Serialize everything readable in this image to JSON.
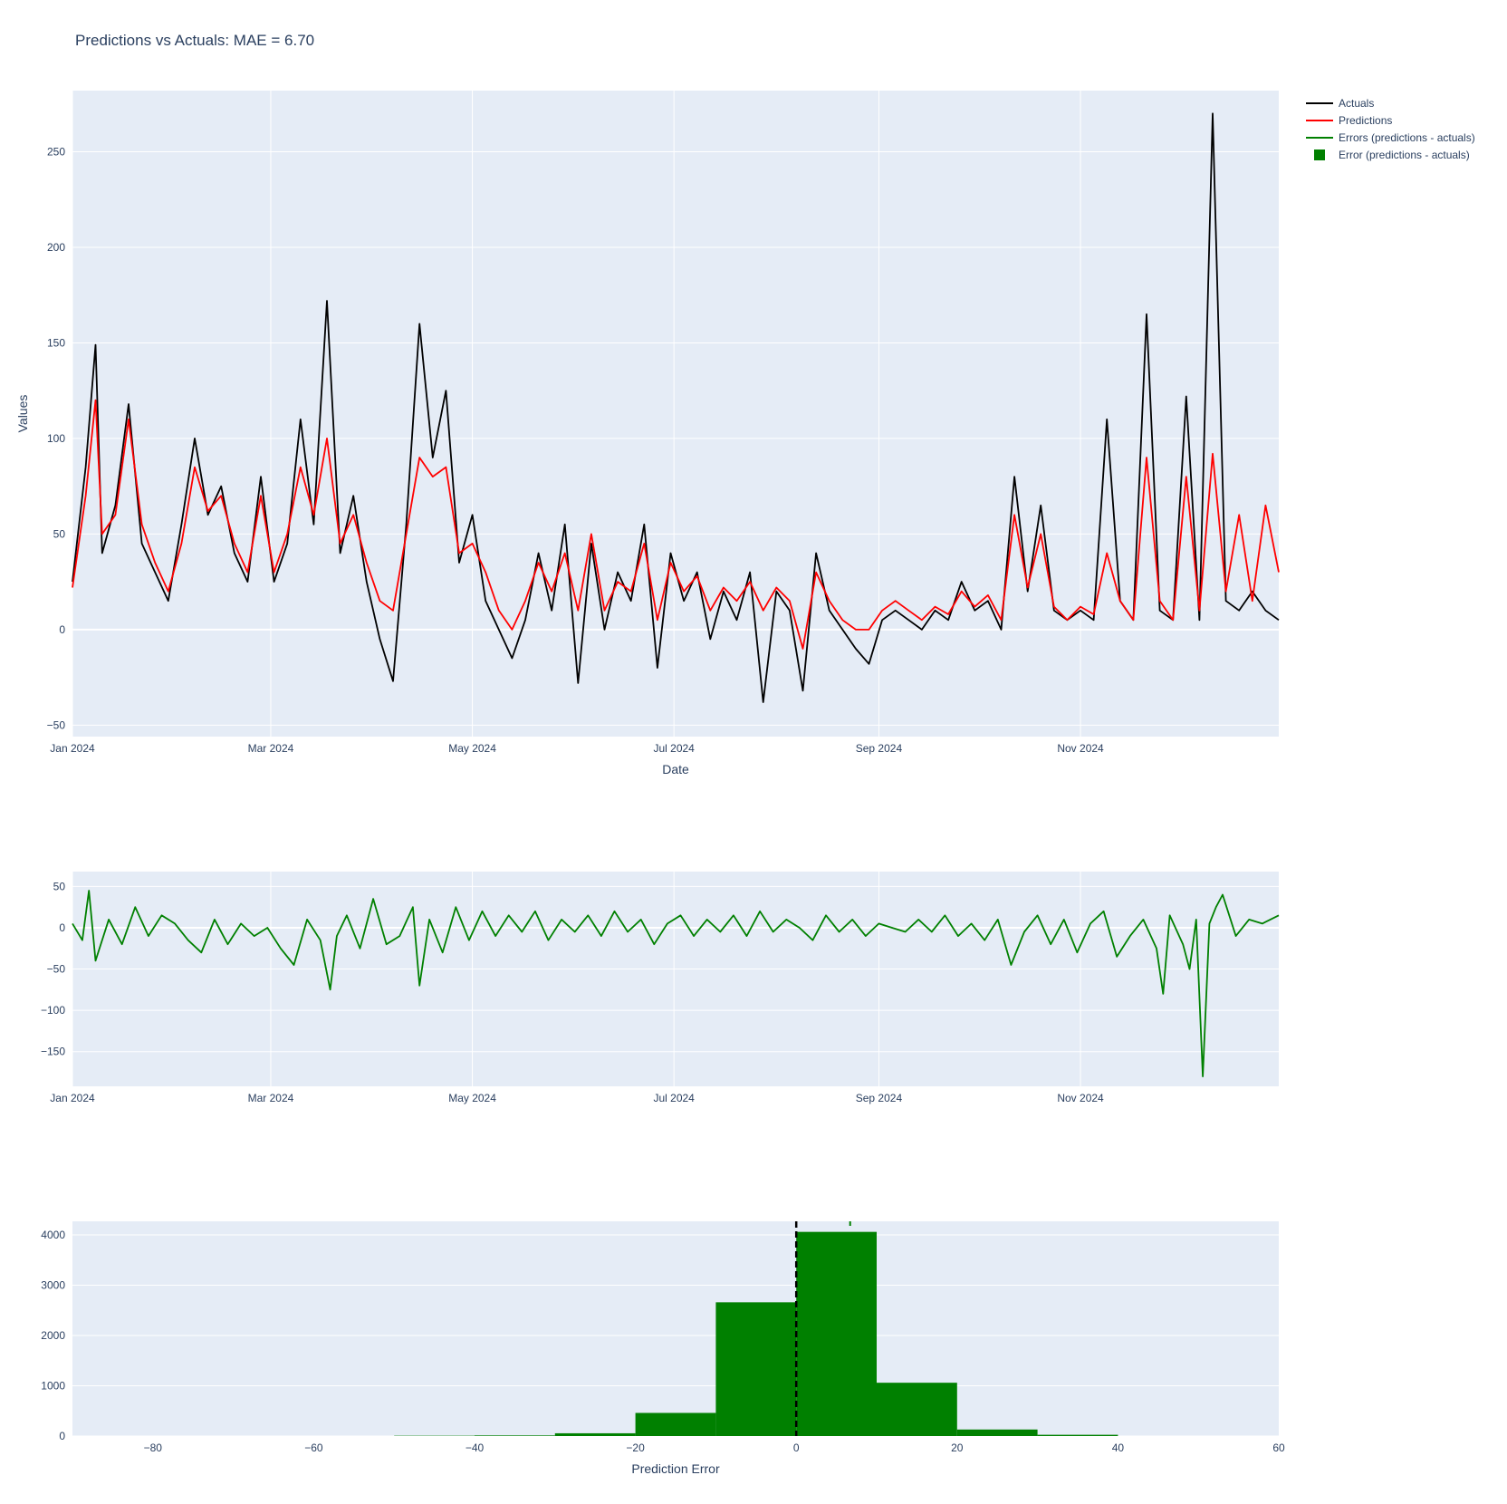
{
  "title": "Predictions vs Actuals: MAE = 6.70",
  "colors": {
    "actuals": "#000000",
    "predictions": "#ff0000",
    "errors": "#008000",
    "plot_bg": "#e5ecf6",
    "grid": "#ffffff"
  },
  "legend": {
    "placement": "top-right-outside",
    "items": [
      {
        "label": "Actuals",
        "color": "#000000",
        "symbol": "line"
      },
      {
        "label": "Predictions",
        "color": "#ff0000",
        "symbol": "line"
      },
      {
        "label": "Errors (predictions - actuals)",
        "color": "#008000",
        "symbol": "line"
      },
      {
        "label": "Error (predictions - actuals)",
        "color": "#008000",
        "symbol": "square"
      }
    ]
  },
  "chart_data": [
    {
      "id": "timeseries",
      "type": "line",
      "xlabel": "Date",
      "ylabel": "Values",
      "xlim": [
        "2024-01-01",
        "2024-12-31"
      ],
      "ylim": [
        -56,
        282
      ],
      "x_ticks": [
        "Jan 2024",
        "Mar 2024",
        "May 2024",
        "Jul 2024",
        "Sep 2024",
        "Nov 2024"
      ],
      "x_tick_dates": [
        "2024-01-01",
        "2024-03-01",
        "2024-05-01",
        "2024-07-01",
        "2024-09-01",
        "2024-11-01"
      ],
      "y_ticks": [
        -50,
        0,
        50,
        100,
        150,
        200,
        250
      ],
      "grid": true,
      "series": [
        {
          "name": "Actuals",
          "color": "#000000",
          "x": [
            "2024-01-01",
            "2024-01-05",
            "2024-01-08",
            "2024-01-10",
            "2024-01-14",
            "2024-01-18",
            "2024-01-22",
            "2024-01-26",
            "2024-01-30",
            "2024-02-03",
            "2024-02-07",
            "2024-02-11",
            "2024-02-15",
            "2024-02-19",
            "2024-02-23",
            "2024-02-27",
            "2024-03-02",
            "2024-03-06",
            "2024-03-10",
            "2024-03-14",
            "2024-03-18",
            "2024-03-22",
            "2024-03-26",
            "2024-03-30",
            "2024-04-03",
            "2024-04-07",
            "2024-04-11",
            "2024-04-15",
            "2024-04-19",
            "2024-04-23",
            "2024-04-27",
            "2024-05-01",
            "2024-05-05",
            "2024-05-09",
            "2024-05-13",
            "2024-05-17",
            "2024-05-21",
            "2024-05-25",
            "2024-05-29",
            "2024-06-02",
            "2024-06-06",
            "2024-06-10",
            "2024-06-14",
            "2024-06-18",
            "2024-06-22",
            "2024-06-26",
            "2024-06-30",
            "2024-07-04",
            "2024-07-08",
            "2024-07-12",
            "2024-07-16",
            "2024-07-20",
            "2024-07-24",
            "2024-07-28",
            "2024-08-01",
            "2024-08-05",
            "2024-08-09",
            "2024-08-13",
            "2024-08-17",
            "2024-08-21",
            "2024-08-25",
            "2024-08-29",
            "2024-09-02",
            "2024-09-06",
            "2024-09-10",
            "2024-09-14",
            "2024-09-18",
            "2024-09-22",
            "2024-09-26",
            "2024-09-30",
            "2024-10-04",
            "2024-10-08",
            "2024-10-12",
            "2024-10-16",
            "2024-10-20",
            "2024-10-24",
            "2024-10-28",
            "2024-11-01",
            "2024-11-05",
            "2024-11-09",
            "2024-11-13",
            "2024-11-17",
            "2024-11-21",
            "2024-11-25",
            "2024-11-29",
            "2024-12-03",
            "2024-12-07",
            "2024-12-11",
            "2024-12-15",
            "2024-12-19",
            "2024-12-23",
            "2024-12-27",
            "2024-12-31"
          ],
          "y": [
            25,
            85,
            149,
            40,
            65,
            118,
            45,
            30,
            15,
            55,
            100,
            60,
            75,
            40,
            25,
            80,
            25,
            45,
            110,
            55,
            172,
            40,
            70,
            25,
            -5,
            -27,
            55,
            160,
            90,
            125,
            35,
            60,
            15,
            0,
            -15,
            5,
            40,
            10,
            55,
            -28,
            45,
            0,
            30,
            15,
            55,
            -20,
            40,
            15,
            30,
            -5,
            20,
            5,
            30,
            -38,
            20,
            10,
            -32,
            40,
            10,
            0,
            -10,
            -18,
            5,
            10,
            5,
            0,
            10,
            5,
            25,
            10,
            15,
            0,
            80,
            20,
            65,
            10,
            5,
            10,
            5,
            110,
            15,
            5,
            165,
            10,
            5,
            122,
            5,
            270,
            15,
            10,
            20,
            10,
            5
          ]
        },
        {
          "name": "Predictions",
          "color": "#ff0000",
          "x": [
            "2024-01-01",
            "2024-01-05",
            "2024-01-08",
            "2024-01-10",
            "2024-01-14",
            "2024-01-18",
            "2024-01-22",
            "2024-01-26",
            "2024-01-30",
            "2024-02-03",
            "2024-02-07",
            "2024-02-11",
            "2024-02-15",
            "2024-02-19",
            "2024-02-23",
            "2024-02-27",
            "2024-03-02",
            "2024-03-06",
            "2024-03-10",
            "2024-03-14",
            "2024-03-18",
            "2024-03-22",
            "2024-03-26",
            "2024-03-30",
            "2024-04-03",
            "2024-04-07",
            "2024-04-11",
            "2024-04-15",
            "2024-04-19",
            "2024-04-23",
            "2024-04-27",
            "2024-05-01",
            "2024-05-05",
            "2024-05-09",
            "2024-05-13",
            "2024-05-17",
            "2024-05-21",
            "2024-05-25",
            "2024-05-29",
            "2024-06-02",
            "2024-06-06",
            "2024-06-10",
            "2024-06-14",
            "2024-06-18",
            "2024-06-22",
            "2024-06-26",
            "2024-06-30",
            "2024-07-04",
            "2024-07-08",
            "2024-07-12",
            "2024-07-16",
            "2024-07-20",
            "2024-07-24",
            "2024-07-28",
            "2024-08-01",
            "2024-08-05",
            "2024-08-09",
            "2024-08-13",
            "2024-08-17",
            "2024-08-21",
            "2024-08-25",
            "2024-08-29",
            "2024-09-02",
            "2024-09-06",
            "2024-09-10",
            "2024-09-14",
            "2024-09-18",
            "2024-09-22",
            "2024-09-26",
            "2024-09-30",
            "2024-10-04",
            "2024-10-08",
            "2024-10-12",
            "2024-10-16",
            "2024-10-20",
            "2024-10-24",
            "2024-10-28",
            "2024-11-01",
            "2024-11-05",
            "2024-11-09",
            "2024-11-13",
            "2024-11-17",
            "2024-11-21",
            "2024-11-25",
            "2024-11-29",
            "2024-12-03",
            "2024-12-07",
            "2024-12-11",
            "2024-12-15",
            "2024-12-19",
            "2024-12-23",
            "2024-12-27",
            "2024-12-31"
          ],
          "y": [
            22,
            70,
            120,
            50,
            60,
            110,
            55,
            35,
            20,
            45,
            85,
            62,
            70,
            45,
            30,
            70,
            30,
            50,
            85,
            60,
            100,
            45,
            60,
            35,
            15,
            10,
            50,
            90,
            80,
            85,
            40,
            45,
            30,
            10,
            0,
            15,
            35,
            20,
            40,
            10,
            50,
            10,
            25,
            20,
            45,
            5,
            35,
            20,
            28,
            10,
            22,
            15,
            25,
            10,
            22,
            15,
            -10,
            30,
            15,
            5,
            0,
            0,
            10,
            15,
            10,
            5,
            12,
            8,
            20,
            12,
            18,
            5,
            60,
            22,
            50,
            12,
            5,
            12,
            8,
            40,
            15,
            5,
            90,
            15,
            5,
            80,
            10,
            92,
            20,
            60,
            15,
            65,
            30
          ]
        }
      ]
    },
    {
      "id": "errors",
      "type": "line",
      "xlabel": "",
      "ylabel": "",
      "xlim": [
        "2024-01-01",
        "2024-12-31"
      ],
      "ylim": [
        -192,
        68
      ],
      "x_ticks": [
        "Jan 2024",
        "Mar 2024",
        "May 2024",
        "Jul 2024",
        "Sep 2024",
        "Nov 2024"
      ],
      "x_tick_dates": [
        "2024-01-01",
        "2024-03-01",
        "2024-05-01",
        "2024-07-01",
        "2024-09-01",
        "2024-11-01"
      ],
      "y_ticks": [
        -150,
        -100,
        -50,
        0,
        50
      ],
      "grid": true,
      "series": [
        {
          "name": "Errors (predictions - actuals)",
          "color": "#008000",
          "x": [
            "2024-01-01",
            "2024-01-04",
            "2024-01-06",
            "2024-01-08",
            "2024-01-12",
            "2024-01-16",
            "2024-01-20",
            "2024-01-24",
            "2024-01-28",
            "2024-02-01",
            "2024-02-05",
            "2024-02-09",
            "2024-02-13",
            "2024-02-17",
            "2024-02-21",
            "2024-02-25",
            "2024-02-29",
            "2024-03-04",
            "2024-03-08",
            "2024-03-12",
            "2024-03-16",
            "2024-03-19",
            "2024-03-21",
            "2024-03-24",
            "2024-03-28",
            "2024-04-01",
            "2024-04-05",
            "2024-04-09",
            "2024-04-13",
            "2024-04-15",
            "2024-04-18",
            "2024-04-22",
            "2024-04-26",
            "2024-04-30",
            "2024-05-04",
            "2024-05-08",
            "2024-05-12",
            "2024-05-16",
            "2024-05-20",
            "2024-05-24",
            "2024-05-28",
            "2024-06-01",
            "2024-06-05",
            "2024-06-09",
            "2024-06-13",
            "2024-06-17",
            "2024-06-21",
            "2024-06-25",
            "2024-06-29",
            "2024-07-03",
            "2024-07-07",
            "2024-07-11",
            "2024-07-15",
            "2024-07-19",
            "2024-07-23",
            "2024-07-27",
            "2024-07-31",
            "2024-08-04",
            "2024-08-08",
            "2024-08-12",
            "2024-08-16",
            "2024-08-20",
            "2024-08-24",
            "2024-08-28",
            "2024-09-01",
            "2024-09-05",
            "2024-09-09",
            "2024-09-13",
            "2024-09-17",
            "2024-09-21",
            "2024-09-25",
            "2024-09-29",
            "2024-10-03",
            "2024-10-07",
            "2024-10-11",
            "2024-10-15",
            "2024-10-19",
            "2024-10-23",
            "2024-10-27",
            "2024-10-31",
            "2024-11-04",
            "2024-11-08",
            "2024-11-12",
            "2024-11-16",
            "2024-11-20",
            "2024-11-24",
            "2024-11-26",
            "2024-11-28",
            "2024-12-02",
            "2024-12-04",
            "2024-12-06",
            "2024-12-08",
            "2024-12-10",
            "2024-12-12",
            "2024-12-14",
            "2024-12-18",
            "2024-12-22",
            "2024-12-26",
            "2024-12-31"
          ],
          "y": [
            5,
            -15,
            45,
            -40,
            10,
            -20,
            25,
            -10,
            15,
            5,
            -15,
            -30,
            10,
            -20,
            5,
            -10,
            0,
            -25,
            -45,
            10,
            -15,
            -75,
            -10,
            15,
            -25,
            35,
            -20,
            -10,
            25,
            -70,
            10,
            -30,
            25,
            -15,
            20,
            -10,
            15,
            -5,
            20,
            -15,
            10,
            -5,
            15,
            -10,
            20,
            -5,
            10,
            -20,
            5,
            15,
            -10,
            10,
            -5,
            15,
            -10,
            20,
            -5,
            10,
            0,
            -15,
            15,
            -5,
            10,
            -10,
            5,
            0,
            -5,
            10,
            -5,
            15,
            -10,
            5,
            -15,
            10,
            -45,
            -5,
            15,
            -20,
            10,
            -30,
            5,
            20,
            -35,
            -10,
            10,
            -25,
            -80,
            15,
            -20,
            -50,
            10,
            -180,
            5,
            25,
            40,
            -10,
            10,
            5,
            15
          ]
        }
      ]
    },
    {
      "id": "histogram",
      "type": "bar",
      "xlabel": "Prediction Error",
      "ylabel": "",
      "xlim": [
        -90,
        60
      ],
      "ylim": [
        0,
        4270
      ],
      "x_ticks": [
        -80,
        -60,
        -40,
        -20,
        0,
        20,
        40,
        60
      ],
      "y_ticks": [
        0,
        1000,
        2000,
        3000,
        4000
      ],
      "grid": true,
      "bin_width": 10,
      "bins": [
        {
          "x0": -50,
          "count": 6
        },
        {
          "x0": -40,
          "count": 12
        },
        {
          "x0": -30,
          "count": 55
        },
        {
          "x0": -20,
          "count": 460
        },
        {
          "x0": -10,
          "count": 2660
        },
        {
          "x0": 0,
          "count": 4060
        },
        {
          "x0": 10,
          "count": 1060
        },
        {
          "x0": 20,
          "count": 130
        },
        {
          "x0": 30,
          "count": 25
        }
      ],
      "color": "#008000",
      "reference_line": {
        "x": 0,
        "style": "dashed",
        "color": "#000000"
      },
      "marker_tick_x": 6.7
    }
  ]
}
